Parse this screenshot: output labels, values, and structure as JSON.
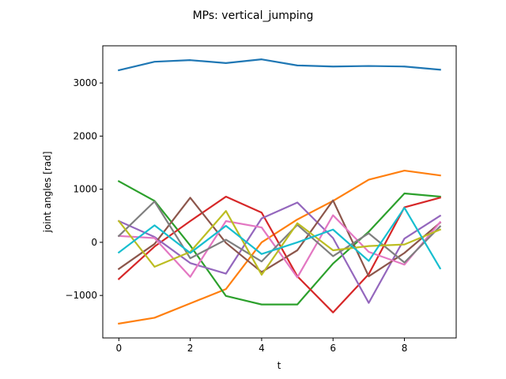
{
  "chart_data": {
    "type": "line",
    "title": "MPs: vertical_jumping",
    "xlabel": "t",
    "ylabel": "joint angles [rad]",
    "xlim": [
      -0.45,
      9.45
    ],
    "ylim": [
      -1800,
      3700
    ],
    "xticks": [
      0,
      2,
      4,
      6,
      8
    ],
    "yticks": [
      -1000,
      0,
      1000,
      2000,
      3000
    ],
    "grid": false,
    "x": [
      0,
      1,
      2,
      3,
      4,
      5,
      6,
      7,
      8,
      9
    ],
    "series": [
      {
        "color": "#1f77b4",
        "values": [
          3240,
          3400,
          3430,
          3375,
          3445,
          3330,
          3310,
          3320,
          3310,
          3250
        ]
      },
      {
        "color": "#ff7f0e",
        "values": [
          -1530,
          -1420,
          -1150,
          -880,
          0,
          430,
          780,
          1180,
          1350,
          1260
        ]
      },
      {
        "color": "#2ca02c",
        "values": [
          1150,
          780,
          -60,
          -1010,
          -1170,
          -1170,
          -400,
          200,
          920,
          860
        ]
      },
      {
        "color": "#d62728",
        "values": [
          -690,
          -80,
          400,
          860,
          560,
          -640,
          -1320,
          -600,
          660,
          840
        ]
      },
      {
        "color": "#9467bd",
        "values": [
          400,
          100,
          -390,
          -590,
          450,
          750,
          80,
          -1140,
          70,
          500
        ]
      },
      {
        "color": "#8c564b",
        "values": [
          -500,
          -30,
          840,
          -10,
          -560,
          -150,
          790,
          -640,
          -200,
          370
        ]
      },
      {
        "color": "#e377c2",
        "values": [
          120,
          80,
          -650,
          400,
          280,
          -660,
          510,
          -180,
          -420,
          380
        ]
      },
      {
        "color": "#7f7f7f",
        "values": [
          120,
          770,
          -300,
          50,
          -360,
          330,
          -260,
          170,
          -380,
          300
        ]
      },
      {
        "color": "#bcbd22",
        "values": [
          400,
          -460,
          -180,
          590,
          -610,
          360,
          -150,
          -70,
          -40,
          240
        ]
      },
      {
        "color": "#17becf",
        "values": [
          -190,
          320,
          -200,
          310,
          -220,
          0,
          240,
          -350,
          650,
          -490
        ]
      }
    ]
  }
}
